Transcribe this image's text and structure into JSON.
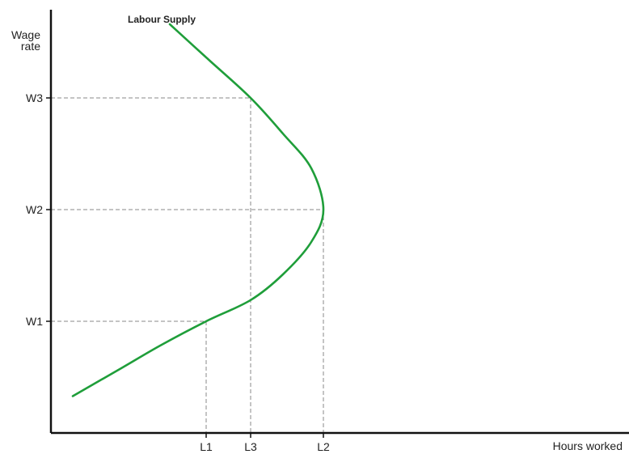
{
  "chart_data": {
    "type": "line",
    "xlabel": "Hours worked",
    "ylabel_lines": [
      "Wage",
      "rate"
    ],
    "xticks": [
      {
        "label": "L1",
        "value": 255
      },
      {
        "label": "L3",
        "value": 310
      },
      {
        "label": "L2",
        "value": 400
      }
    ],
    "yticks": [
      {
        "label": "W1",
        "value": 1
      },
      {
        "label": "W2",
        "value": 2
      },
      {
        "label": "W3",
        "value": 3
      }
    ],
    "xlim": [
      65,
      778
    ],
    "ylim": [
      0,
      4
    ],
    "reference_points": [
      {
        "x": 255,
        "y": 1
      },
      {
        "x": 310,
        "y": 3
      },
      {
        "x": 400,
        "y": 2
      }
    ],
    "series": [
      {
        "name": "Labour Supply",
        "color": "#1f9e3a",
        "x": [
          90,
          150,
          200,
          255,
          310,
          350,
          385,
          400,
          385,
          350,
          310,
          260,
          210
        ],
        "y": [
          0.33,
          0.58,
          0.79,
          1.0,
          1.19,
          1.42,
          1.71,
          2.0,
          2.37,
          2.68,
          3.0,
          3.33,
          3.66
        ]
      }
    ],
    "colors": {
      "curve": "#1f9e3a",
      "axis": "#111111",
      "guide": "#888888",
      "text": "#222222"
    }
  }
}
